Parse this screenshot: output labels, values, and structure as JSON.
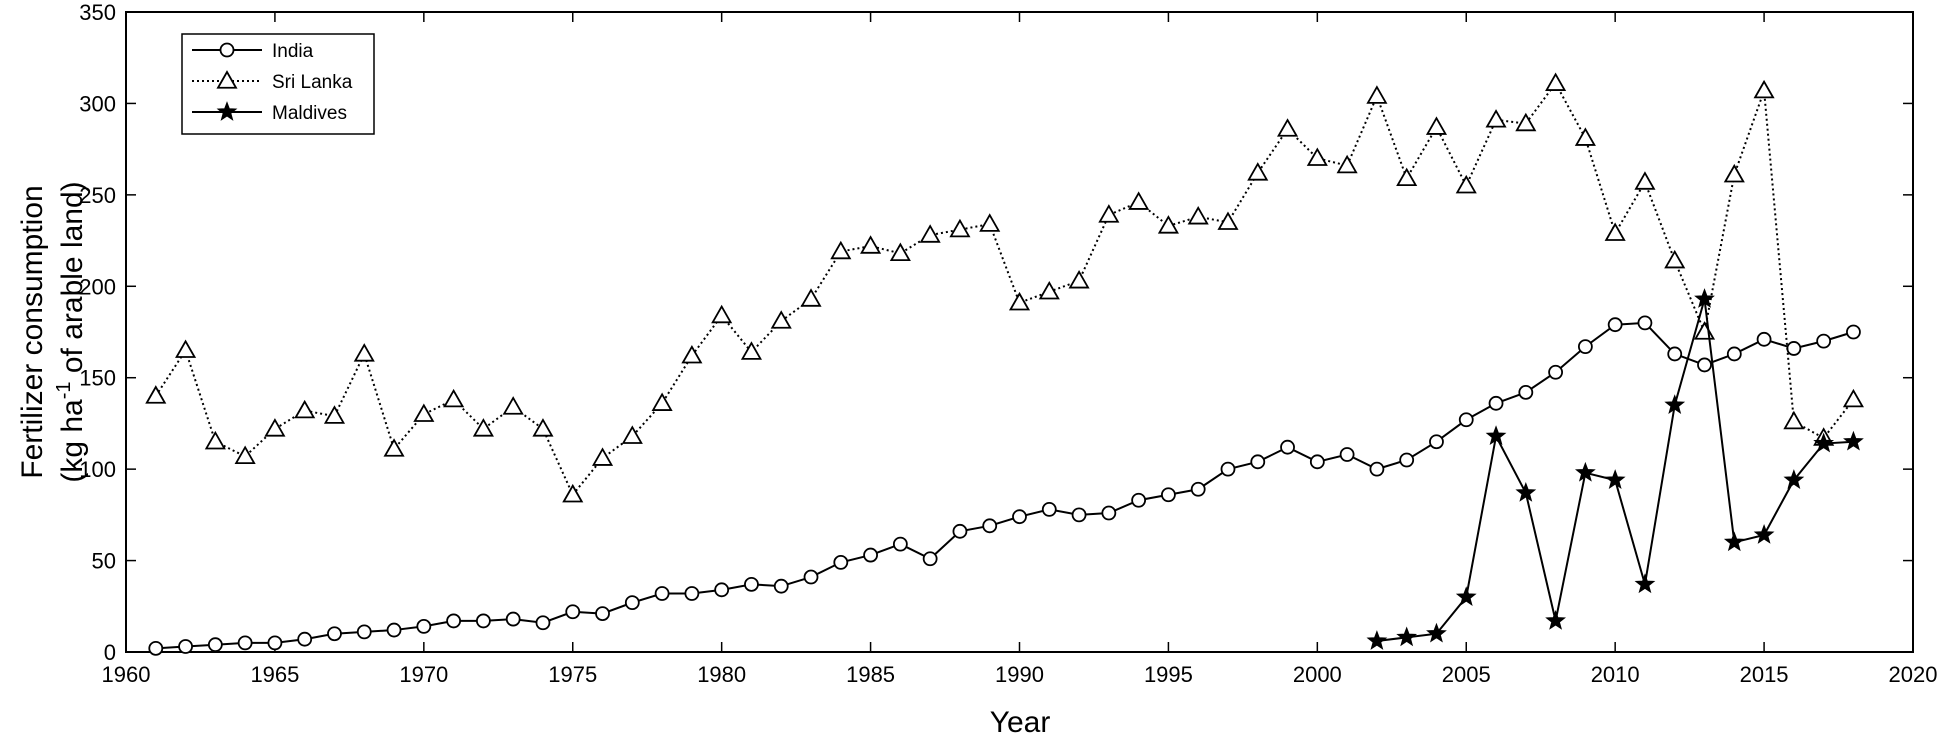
{
  "chart_data": {
    "type": "line",
    "xlabel": "Year",
    "ylabel_line1": "Fertilizer consumption",
    "ylabel_line2_prefix": "(kg ha",
    "ylabel_line2_sup": "-1",
    "ylabel_line2_suffix": " of arable land)",
    "xlim": [
      1960,
      2020
    ],
    "ylim": [
      0,
      350
    ],
    "x_ticks": [
      1960,
      1965,
      1970,
      1975,
      1980,
      1985,
      1990,
      1995,
      2000,
      2005,
      2010,
      2015,
      2020
    ],
    "y_ticks": [
      0,
      50,
      100,
      150,
      200,
      250,
      300,
      350
    ],
    "grid": false,
    "legend_position": "top-left",
    "series": [
      {
        "name": "India",
        "marker": "circle",
        "line_style": "solid",
        "x": [
          1961,
          1962,
          1963,
          1964,
          1965,
          1966,
          1967,
          1968,
          1969,
          1970,
          1971,
          1972,
          1973,
          1974,
          1975,
          1976,
          1977,
          1978,
          1979,
          1980,
          1981,
          1982,
          1983,
          1984,
          1985,
          1986,
          1987,
          1988,
          1989,
          1990,
          1991,
          1992,
          1993,
          1994,
          1995,
          1996,
          1997,
          1998,
          1999,
          2000,
          2001,
          2002,
          2003,
          2004,
          2005,
          2006,
          2007,
          2008,
          2009,
          2010,
          2011,
          2012,
          2013,
          2014,
          2015,
          2016,
          2017,
          2018
        ],
        "y": [
          2,
          3,
          4,
          5,
          5,
          7,
          10,
          11,
          12,
          14,
          17,
          17,
          18,
          16,
          22,
          21,
          27,
          32,
          32,
          34,
          37,
          36,
          41,
          49,
          53,
          59,
          51,
          66,
          69,
          74,
          78,
          75,
          76,
          83,
          86,
          89,
          100,
          104,
          112,
          104,
          108,
          100,
          105,
          115,
          127,
          136,
          142,
          153,
          167,
          179,
          180,
          163,
          157,
          163,
          171,
          166,
          170,
          175
        ]
      },
      {
        "name": "Sri Lanka",
        "marker": "triangle",
        "line_style": "dotted",
        "x": [
          1961,
          1962,
          1963,
          1964,
          1965,
          1966,
          1967,
          1968,
          1969,
          1970,
          1971,
          1972,
          1973,
          1974,
          1975,
          1976,
          1977,
          1978,
          1979,
          1980,
          1981,
          1982,
          1983,
          1984,
          1985,
          1986,
          1987,
          1988,
          1989,
          1990,
          1991,
          1992,
          1993,
          1994,
          1995,
          1996,
          1997,
          1998,
          1999,
          2000,
          2001,
          2002,
          2003,
          2004,
          2005,
          2006,
          2007,
          2008,
          2009,
          2010,
          2011,
          2012,
          2013,
          2014,
          2015,
          2016,
          2017,
          2018
        ],
        "y": [
          140,
          165,
          115,
          107,
          122,
          132,
          129,
          163,
          111,
          130,
          138,
          122,
          134,
          122,
          86,
          106,
          118,
          136,
          162,
          184,
          164,
          181,
          193,
          219,
          222,
          218,
          228,
          231,
          234,
          191,
          197,
          203,
          239,
          246,
          233,
          238,
          235,
          262,
          286,
          270,
          266,
          304,
          259,
          287,
          255,
          291,
          289,
          311,
          281,
          229,
          257,
          214,
          175,
          261,
          307,
          126,
          117,
          138
        ]
      },
      {
        "name": "Maldives",
        "marker": "star",
        "line_style": "solid",
        "x": [
          2002,
          2003,
          2004,
          2005,
          2006,
          2007,
          2008,
          2009,
          2010,
          2011,
          2012,
          2013,
          2014,
          2015,
          2016,
          2017,
          2018
        ],
        "y": [
          6,
          8,
          10,
          30,
          118,
          87,
          17,
          98,
          94,
          37,
          135,
          193,
          60,
          64,
          94,
          114,
          115
        ]
      }
    ]
  }
}
